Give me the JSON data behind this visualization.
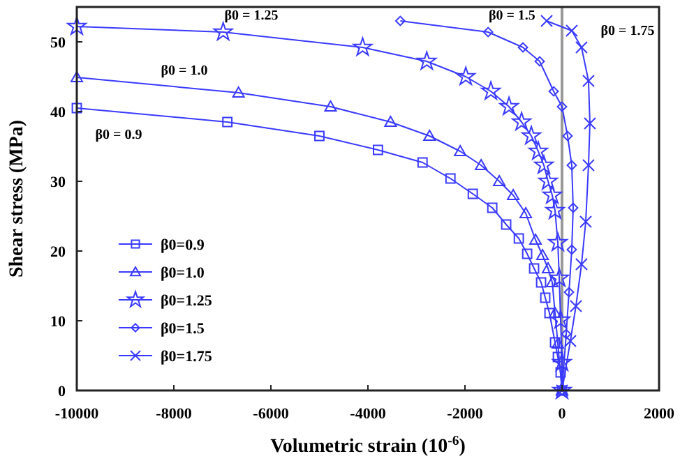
{
  "chart_data": {
    "type": "line",
    "xlabel": "Volumetric strain  (10$^{-6}$)",
    "ylabel": "Shear stress (MPa)",
    "xlim": [
      -10000,
      2000
    ],
    "xticks": [
      -10000,
      -8000,
      -6000,
      -4000,
      -2000,
      0,
      2000
    ],
    "ylim": [
      0,
      55
    ],
    "yticks": [
      0,
      10,
      20,
      30,
      40,
      50
    ],
    "grid": false,
    "legend": "bottom left",
    "line_style": "solid",
    "ref_lines": [
      {
        "axis": "x",
        "value": 0,
        "color": "#999999"
      }
    ],
    "annotations": [
      "β0 = 0.9",
      "β0 = 1.0",
      "β0 = 1.25",
      "β0 = 1.5",
      "β0 = 1.75"
    ],
    "series": [
      {
        "name": "β0=0.9",
        "color": "#3a3aff",
        "marker": "square",
        "x": [
          -10000,
          -6897,
          -5000,
          -3793,
          -2874,
          -2299,
          -1839,
          -1437,
          -1150,
          -890,
          -718,
          -575,
          -431,
          -345,
          -259,
          -144,
          -86,
          -29,
          0
        ],
        "values": [
          40.5,
          38.5,
          36.5,
          34.5,
          32.7,
          30.4,
          28.2,
          26.2,
          23.8,
          21.8,
          19.6,
          17.5,
          15.5,
          13.3,
          11.1,
          6.9,
          4.8,
          2.6,
          0
        ]
      },
      {
        "name": "β0=1.0",
        "color": "#3a3aff",
        "marker": "triangle",
        "x": [
          -10000,
          -6667,
          -4770,
          -3534,
          -2730,
          -2098,
          -1667,
          -1293,
          -1006,
          -747,
          -546,
          -402,
          -287,
          -201,
          -144,
          -86,
          0
        ],
        "values": [
          44.9,
          42.7,
          40.7,
          38.5,
          36.5,
          34.3,
          32.3,
          30.0,
          28.0,
          25.4,
          21.6,
          19.4,
          17.5,
          15.5,
          11.1,
          6.7,
          0
        ]
      },
      {
        "name": "β0=1.25",
        "color": "#3a3aff",
        "marker": "star",
        "x": [
          -10000,
          -6983,
          -4109,
          -2787,
          -1983,
          -1466,
          -1092,
          -833,
          -632,
          -489,
          -374,
          -287,
          -201,
          -144,
          -86,
          -57,
          -29,
          0,
          0
        ],
        "values": [
          52.2,
          51.4,
          49.2,
          47.2,
          45.0,
          42.9,
          40.7,
          38.5,
          36.5,
          34.3,
          32.3,
          30.0,
          28.0,
          25.8,
          21.2,
          16.1,
          10.1,
          4,
          0
        ]
      },
      {
        "name": "β0=1.5",
        "color": "#3a3aff",
        "marker": "diamond",
        "x": [
          -3333,
          -1523,
          -805,
          -460,
          -172,
          0,
          115,
          201,
          230,
          201,
          144,
          86,
          29,
          0
        ],
        "values": [
          53.0,
          51.4,
          49.2,
          47.2,
          42.9,
          40.7,
          36.5,
          32.3,
          26.2,
          20.2,
          14.1,
          8.1,
          null,
          0
        ]
      },
      {
        "name": "β0=1.75",
        "color": "#3a3aff",
        "marker": "cross",
        "x": [
          -316,
          201,
          402,
          546,
          575,
          546,
          489,
          402,
          287,
          172,
          57,
          0
        ],
        "values": [
          53.0,
          51.6,
          49.2,
          44.4,
          38.3,
          32.3,
          24.2,
          18.1,
          12.1,
          7.1,
          null,
          0
        ]
      }
    ]
  }
}
